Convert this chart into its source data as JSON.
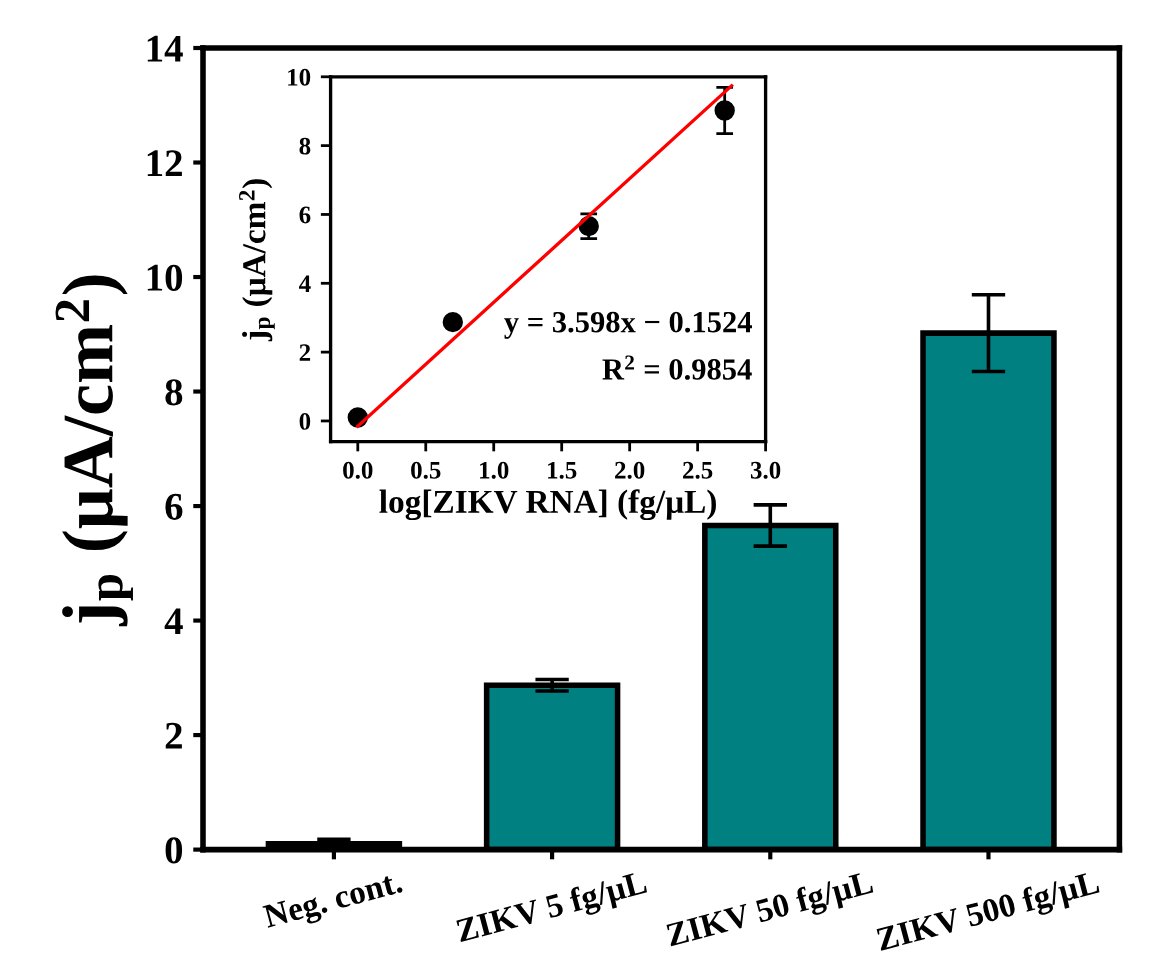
{
  "chart_data": [
    {
      "type": "bar",
      "ylabel": "j$_{p}$ (μA/cm$^{2}$)",
      "categories": [
        "Neg. cont.",
        "ZIKV 5 fg/μL",
        "ZIKV 50 fg/μL",
        "ZIKV 500 fg/μL"
      ],
      "values": [
        0.1,
        2.87,
        5.66,
        9.02
      ],
      "errors": [
        0.08,
        0.1,
        0.36,
        0.67
      ],
      "color": "#008080",
      "ylim": [
        0,
        14
      ],
      "yticks": [
        0,
        2,
        4,
        6,
        8,
        10,
        12,
        14
      ],
      "grid": false,
      "legend": false
    },
    {
      "type": "scatter",
      "xlabel": "log[ZIKV RNA] (fg/μL)",
      "ylabel": "j$_{p}$ (μA/cm$^{2}$)",
      "xlim": [
        -0.2,
        3.0
      ],
      "xticks": [
        {
          "value": 0,
          "label": "0.0"
        },
        0.5,
        {
          "value": 1,
          "label": "1.0"
        },
        1.5,
        {
          "value": 2,
          "label": "2.0"
        },
        2.5,
        {
          "value": 3,
          "label": "3.0"
        }
      ],
      "ylim": [
        -0.6,
        10
      ],
      "yticks": [
        0,
        2,
        4,
        6,
        8,
        10
      ],
      "grid": false,
      "legend": false,
      "series": [
        {
          "type": "scatter",
          "color": "#000000",
          "marker": "circle",
          "x": [
            0,
            0.699,
            1.699,
            2.699
          ],
          "values": [
            0.1,
            2.87,
            5.66,
            9.02
          ],
          "errors": [
            0.08,
            0.1,
            0.36,
            0.67
          ]
        },
        {
          "type": "line",
          "color": "#ff0000",
          "marker": "none",
          "line_style": "solid",
          "x": [
            0,
            2.75
          ],
          "values": [
            -0.15,
            9.74
          ]
        }
      ],
      "annotations": [
        "y = 3.598x − 0.1524",
        "R$^{2}$ = 0.9854"
      ]
    }
  ]
}
